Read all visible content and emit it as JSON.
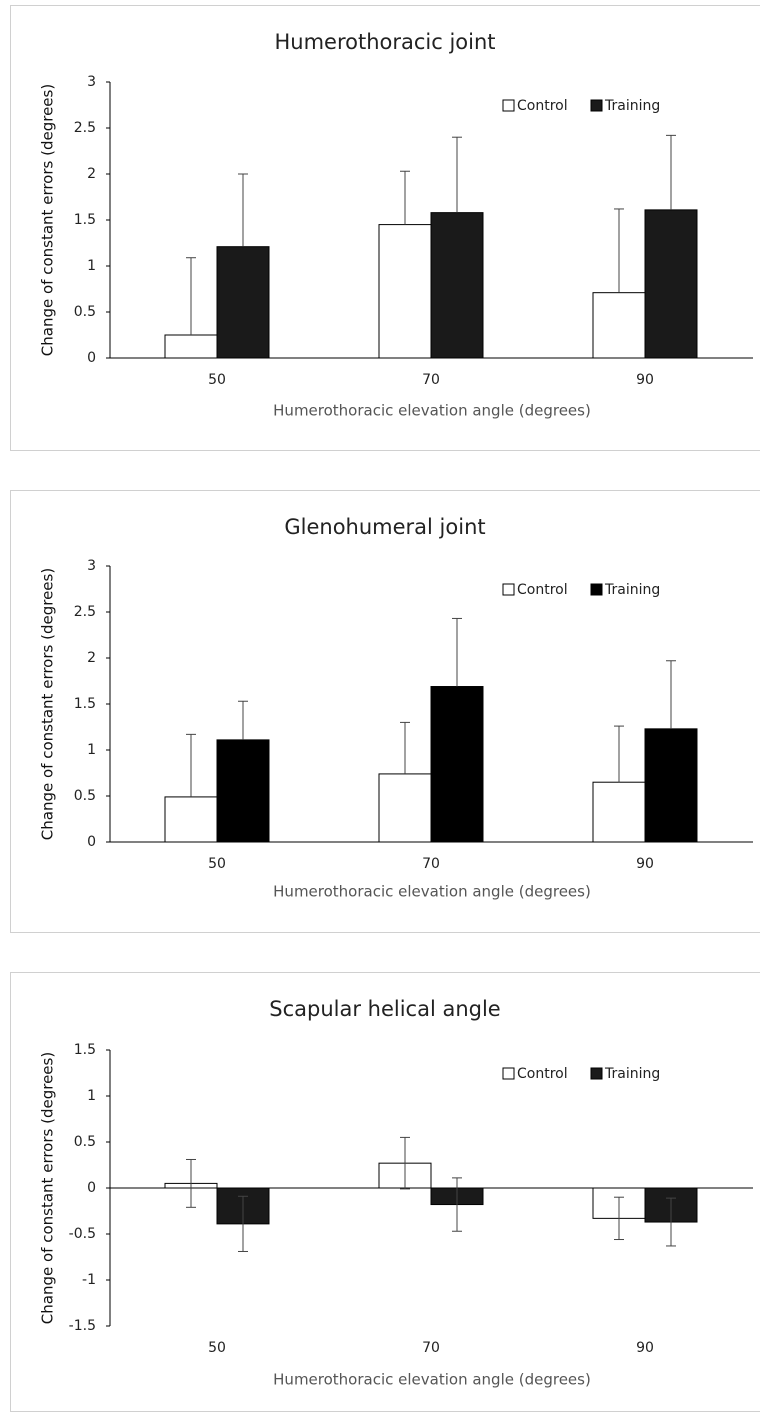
{
  "chart_data": [
    {
      "type": "bar",
      "title": "Humerothoracic joint",
      "x_label": "Humerothoracic elevation angle (degrees)",
      "y_label": "Change of constant errors (degrees)",
      "categories": [
        "50",
        "70",
        "90"
      ],
      "error_bars": "plus",
      "series": [
        {
          "name": "Control",
          "color": "#ffffff",
          "values": [
            0.25,
            1.45,
            0.71
          ],
          "errors": [
            0.84,
            0.58,
            0.91
          ]
        },
        {
          "name": "Training",
          "color": "#1a1a1a",
          "values": [
            1.21,
            1.58,
            1.61
          ],
          "errors": [
            0.79,
            0.82,
            0.81
          ]
        }
      ],
      "ylim": [
        0,
        3
      ],
      "yticks": [
        0,
        0.5,
        1,
        1.5,
        2,
        2.5,
        3
      ],
      "legend": "top-right"
    },
    {
      "type": "bar",
      "title": "Glenohumeral joint",
      "x_label": "Humerothoracic elevation angle (degrees)",
      "y_label": "Change of constant errors (degrees)",
      "categories": [
        "50",
        "70",
        "90"
      ],
      "error_bars": "plus",
      "series": [
        {
          "name": "Control",
          "color": "#ffffff",
          "values": [
            0.49,
            0.74,
            0.65
          ],
          "errors": [
            0.68,
            0.56,
            0.61
          ]
        },
        {
          "name": "Training",
          "color": "#000000",
          "values": [
            1.11,
            1.69,
            1.23
          ],
          "errors": [
            0.42,
            0.74,
            0.74
          ]
        }
      ],
      "ylim": [
        0,
        3
      ],
      "yticks": [
        0,
        0.5,
        1,
        1.5,
        2,
        2.5,
        3
      ],
      "legend": "top-right"
    },
    {
      "type": "bar",
      "title": "Scapular helical angle",
      "x_label": "Humerothoracic elevation angle (degrees)",
      "y_label": "Change of constant errors (degrees)",
      "categories": [
        "50",
        "70",
        "90"
      ],
      "error_bars": "both",
      "series": [
        {
          "name": "Control",
          "color": "#ffffff",
          "values": [
            0.05,
            0.27,
            -0.33
          ],
          "errors": [
            0.26,
            0.28,
            0.23
          ]
        },
        {
          "name": "Training",
          "color": "#1a1a1a",
          "values": [
            -0.39,
            -0.18,
            -0.37
          ],
          "errors": [
            0.3,
            0.29,
            0.26
          ]
        }
      ],
      "ylim": [
        -1.5,
        1.5
      ],
      "yticks": [
        -1.5,
        -1,
        -0.5,
        0,
        0.5,
        1,
        1.5
      ],
      "legend": "top-right"
    }
  ]
}
